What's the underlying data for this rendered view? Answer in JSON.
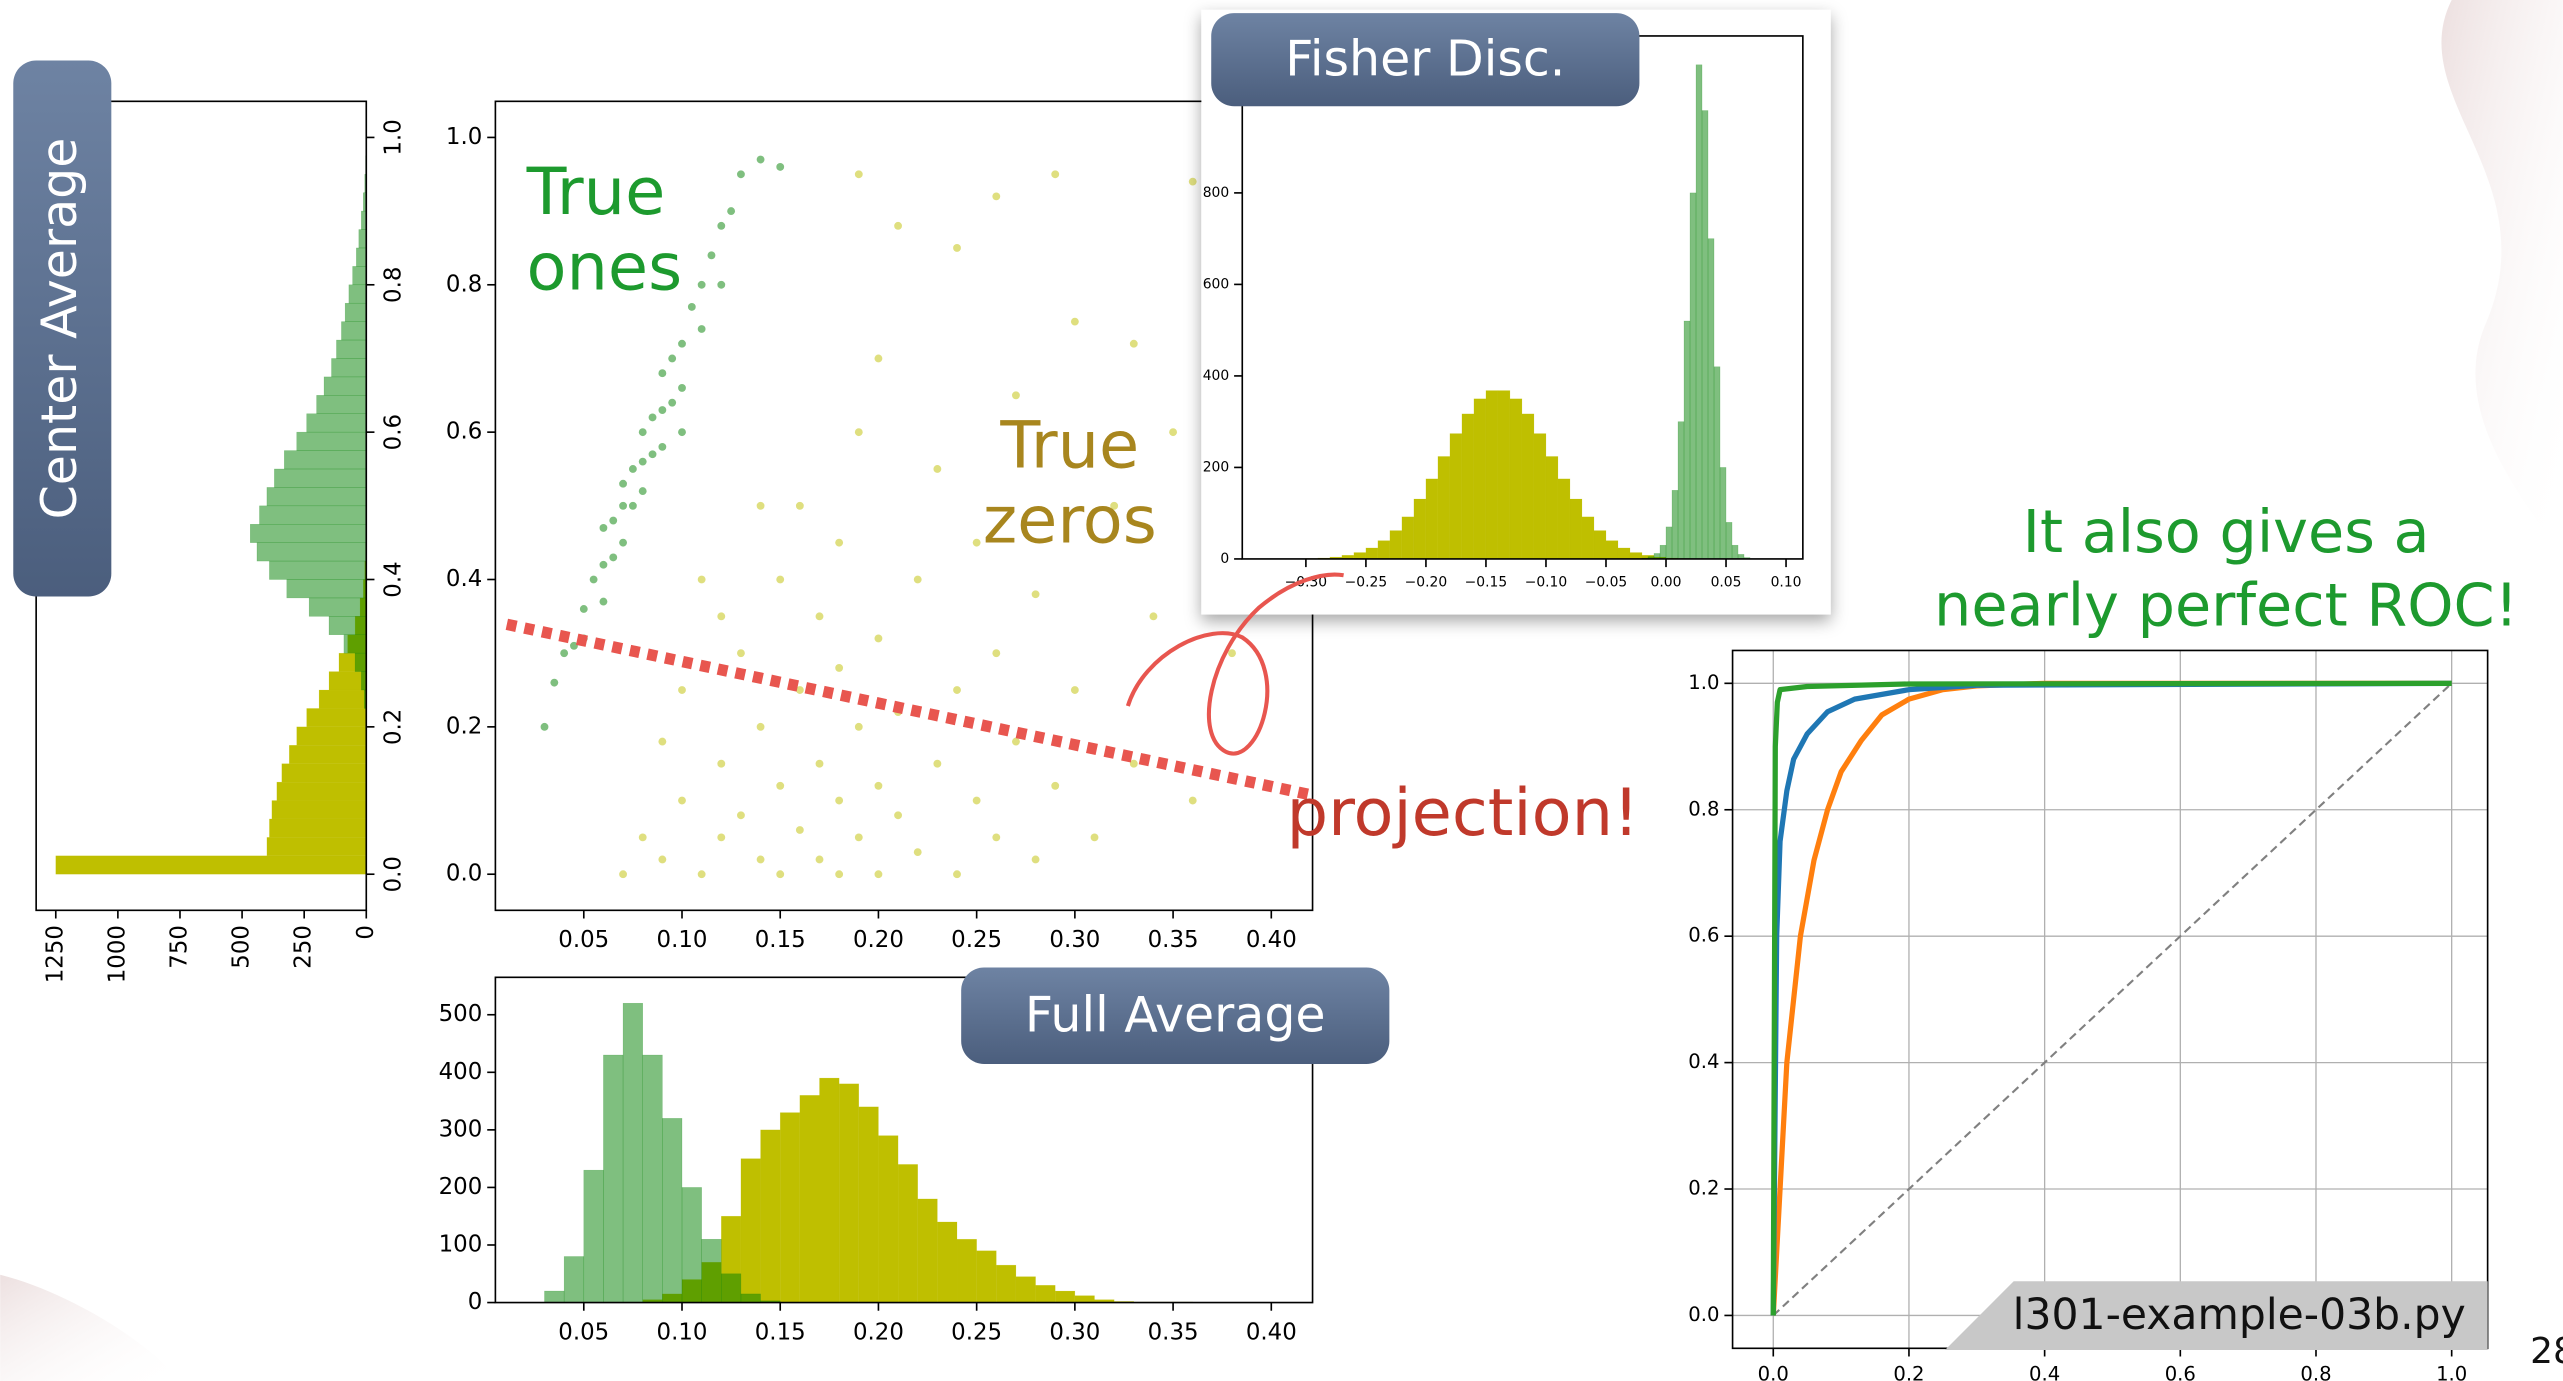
{
  "chart_data": [
    {
      "type": "scatter",
      "xlim": [
        0.005,
        0.421
      ],
      "ylim": [
        -0.049,
        1.049
      ],
      "xticks": [
        0.05,
        {
          "value": 0.1,
          "label": "0.10"
        },
        0.15,
        {
          "value": 0.2,
          "label": "0.20"
        },
        0.25,
        {
          "value": 0.3,
          "label": "0.30"
        },
        0.35,
        {
          "value": 0.4,
          "label": "0.40"
        }
      ],
      "yticks": [
        {
          "value": 0,
          "label": "0.0"
        },
        0.2,
        0.4,
        0.6,
        0.8,
        {
          "value": 1,
          "label": "1.0"
        }
      ],
      "annotation": "projection!",
      "series": [
        {
          "name": "True zeros",
          "color": "#bfbf00",
          "alpha": 0.5,
          "x": [
            0.07,
            0.08,
            0.09,
            0.1,
            0.11,
            0.12,
            0.12,
            0.13,
            0.13,
            0.14,
            0.14,
            0.15,
            0.15,
            0.15,
            0.16,
            0.16,
            0.16,
            0.17,
            0.17,
            0.17,
            0.18,
            0.18,
            0.18,
            0.18,
            0.19,
            0.19,
            0.19,
            0.2,
            0.2,
            0.2,
            0.21,
            0.21,
            0.22,
            0.22,
            0.23,
            0.23,
            0.24,
            0.24,
            0.25,
            0.25,
            0.26,
            0.26,
            0.27,
            0.27,
            0.28,
            0.28,
            0.29,
            0.3,
            0.3,
            0.31,
            0.32,
            0.33,
            0.34,
            0.35,
            0.36,
            0.38,
            0.4,
            0.12,
            0.14,
            0.1,
            0.11,
            0.2,
            0.24,
            0.19,
            0.21,
            0.26,
            0.29,
            0.36,
            0.33,
            0.09
          ],
          "values": [
            0,
            0.05,
            0.02,
            0.1,
            0,
            0.15,
            0.05,
            0.3,
            0.08,
            0.2,
            0.02,
            0.4,
            0.12,
            0,
            0.25,
            0.06,
            0.5,
            0.15,
            0.35,
            0.02,
            0.1,
            0.28,
            0.45,
            0,
            0.2,
            0.05,
            0.6,
            0.12,
            0.32,
            0,
            0.22,
            0.08,
            0.4,
            0.03,
            0.15,
            0.55,
            0.25,
            0,
            0.1,
            0.45,
            0.3,
            0.05,
            0.18,
            0.65,
            0.02,
            0.38,
            0.12,
            0.25,
            0.75,
            0.05,
            0.5,
            0.15,
            0.35,
            0.6,
            0.1,
            0.3,
            0.45,
            0.35,
            0.5,
            0.25,
            0.4,
            0.7,
            0.85,
            0.95,
            0.88,
            0.92,
            0.95,
            0.94,
            0.72,
            0.18
          ]
        },
        {
          "name": "True ones",
          "color": "#008000",
          "alpha": 0.5,
          "x": [
            0.03,
            0.035,
            0.04,
            0.045,
            0.05,
            0.05,
            0.055,
            0.06,
            0.06,
            0.065,
            0.07,
            0.07,
            0.075,
            0.08,
            0.08,
            0.085,
            0.09,
            0.09,
            0.095,
            0.1,
            0.1,
            0.105,
            0.11,
            0.11,
            0.115,
            0.12,
            0.125,
            0.13,
            0.065,
            0.075,
            0.085,
            0.095,
            0.06,
            0.08,
            0.1,
            0.14,
            0.15,
            0.12,
            0.09,
            0.07
          ],
          "values": [
            0.2,
            0.26,
            0.3,
            0.31,
            0.36,
            0.32,
            0.4,
            0.42,
            0.37,
            0.48,
            0.5,
            0.45,
            0.55,
            0.56,
            0.52,
            0.62,
            0.63,
            0.58,
            0.7,
            0.72,
            0.66,
            0.77,
            0.8,
            0.74,
            0.84,
            0.88,
            0.9,
            0.95,
            0.43,
            0.5,
            0.57,
            0.64,
            0.47,
            0.6,
            0.6,
            0.97,
            0.96,
            0.8,
            0.68,
            0.53
          ]
        }
      ]
    },
    {
      "type": "histogram",
      "orientation": "horizontal",
      "title": "Center Average",
      "xlim": [
        1329,
        0
      ],
      "ylim": [
        -0.049,
        1.049
      ],
      "xticks": [
        1250,
        1000,
        750,
        500,
        250,
        0
      ],
      "yticks": [
        {
          "value": 0,
          "label": "0.0"
        },
        0.2,
        0.4,
        0.6,
        0.8,
        {
          "value": 1,
          "label": "1.0"
        }
      ],
      "bins": [
        0,
        0.025,
        0.05,
        0.075,
        0.1,
        0.125,
        0.15,
        0.175,
        0.2,
        0.225,
        0.25,
        0.275,
        0.3,
        0.325,
        0.35,
        0.375,
        0.4,
        0.425,
        0.45,
        0.475,
        0.5,
        0.525,
        0.55,
        0.575,
        0.6,
        0.625,
        0.65,
        0.675,
        0.7,
        0.725,
        0.75,
        0.775,
        0.8,
        0.825,
        0.85,
        0.875,
        0.9,
        0.925,
        0.95,
        0.975,
        1
      ],
      "series": [
        {
          "color": "#bfbf00",
          "alpha": 1,
          "values": [
            1250,
            400,
            390,
            380,
            360,
            340,
            310,
            280,
            240,
            190,
            150,
            110,
            75,
            45,
            25,
            12,
            6,
            3,
            2,
            1,
            0,
            0,
            0,
            0,
            0,
            0,
            0,
            0,
            0,
            0,
            0,
            0,
            0,
            0,
            0,
            0,
            0,
            0,
            0,
            0
          ]
        },
        {
          "color": "#008000",
          "alpha": 0.5,
          "values": [
            0,
            0,
            0,
            0,
            0,
            0,
            0,
            0,
            2,
            8,
            20,
            45,
            90,
            150,
            230,
            320,
            390,
            440,
            467,
            430,
            400,
            370,
            330,
            280,
            240,
            200,
            170,
            140,
            120,
            100,
            85,
            70,
            55,
            40,
            30,
            20,
            12,
            6,
            3,
            1
          ]
        }
      ]
    },
    {
      "type": "histogram",
      "orientation": "vertical",
      "title": "Full Average",
      "xlim": [
        0.005,
        0.421
      ],
      "ylim": [
        0,
        565
      ],
      "xticks": [
        0.05,
        {
          "value": 0.1,
          "label": "0.10"
        },
        0.15,
        {
          "value": 0.2,
          "label": "0.20"
        },
        0.25,
        {
          "value": 0.3,
          "label": "0.30"
        },
        0.35,
        {
          "value": 0.4,
          "label": "0.40"
        }
      ],
      "yticks": [
        0,
        100,
        200,
        300,
        400,
        500
      ],
      "bins": [
        0.02,
        0.03,
        0.04,
        0.05,
        0.06,
        0.07,
        0.08,
        0.09,
        0.1,
        0.11,
        0.12,
        0.13,
        0.14,
        0.15,
        0.16,
        0.17,
        0.18,
        0.19,
        0.2,
        0.21,
        0.22,
        0.23,
        0.24,
        0.25,
        0.26,
        0.27,
        0.28,
        0.29,
        0.3,
        0.31,
        0.32,
        0.33,
        0.34,
        0.35,
        0.36,
        0.37,
        0.38,
        0.39,
        0.4,
        0.41
      ],
      "series": [
        {
          "color": "#bfbf00",
          "alpha": 1,
          "values": [
            0,
            0,
            0,
            0,
            0,
            0,
            5,
            15,
            40,
            70,
            150,
            250,
            300,
            330,
            360,
            390,
            380,
            340,
            290,
            240,
            180,
            140,
            110,
            90,
            65,
            45,
            30,
            20,
            12,
            5,
            2,
            1,
            1,
            1,
            0,
            0,
            0,
            0,
            0
          ]
        },
        {
          "color": "#008000",
          "alpha": 0.5,
          "values": [
            0,
            20,
            80,
            230,
            430,
            520,
            430,
            320,
            200,
            110,
            50,
            15,
            3,
            0,
            0,
            0,
            0,
            0,
            0,
            0,
            0,
            0,
            0,
            0,
            0,
            0,
            0,
            0,
            0,
            0,
            0,
            0,
            0,
            0,
            0,
            0,
            0,
            0,
            0
          ]
        }
      ]
    },
    {
      "type": "histogram",
      "orientation": "vertical",
      "title": "Fisher Disc.",
      "xlim": [
        -0.353,
        0.114
      ],
      "ylim": [
        0,
        1143
      ],
      "xticks": [
        {
          "value": -0.3,
          "label": "−0.30"
        },
        {
          "value": -0.25,
          "label": "−0.25"
        },
        {
          "value": -0.2,
          "label": "−0.20"
        },
        {
          "value": -0.15,
          "label": "−0.15"
        },
        {
          "value": -0.1,
          "label": "−0.10"
        },
        {
          "value": -0.05,
          "label": "−0.05"
        },
        {
          "value": 0,
          "label": "0.00"
        },
        0.05,
        {
          "value": 0.1,
          "label": "0.10"
        }
      ],
      "yticks": [
        0,
        200,
        400,
        600,
        800
      ],
      "series": [
        {
          "color": "#bfbf00",
          "alpha": 1,
          "bins": [
            -0.31,
            -0.3,
            -0.29,
            -0.28,
            -0.27,
            -0.26,
            -0.25,
            -0.24,
            -0.23,
            -0.22,
            -0.21,
            -0.2,
            -0.19,
            -0.18,
            -0.17,
            -0.16,
            -0.15,
            -0.14,
            -0.13,
            -0.12,
            -0.11,
            -0.1,
            -0.09,
            -0.08,
            -0.07,
            -0.06,
            -0.05,
            -0.04,
            -0.03,
            -0.02,
            -0.01,
            0,
            0.01,
            0.02,
            0.03
          ],
          "values": [
            0,
            1,
            2,
            4,
            8,
            14,
            24,
            40,
            62,
            92,
            131,
            175,
            224,
            274,
            317,
            350,
            368,
            368,
            350,
            317,
            274,
            224,
            175,
            131,
            92,
            62,
            40,
            24,
            14,
            8,
            4,
            2,
            1,
            0
          ]
        },
        {
          "color": "#008000",
          "alpha": 0.5,
          "bins": [
            -0.02,
            -0.015,
            -0.01,
            -0.005,
            0,
            0.005,
            0.01,
            0.015,
            0.02,
            0.025,
            0.03,
            0.035,
            0.04,
            0.045,
            0.05,
            0.055,
            0.06,
            0.065,
            0.07
          ],
          "values": [
            2,
            5,
            12,
            30,
            70,
            150,
            300,
            520,
            800,
            1080,
            980,
            700,
            420,
            200,
            80,
            30,
            10,
            3
          ]
        }
      ]
    },
    {
      "type": "line",
      "title_lines": [
        "It also gives a",
        "nearly perfect ROC!"
      ],
      "grid": true,
      "xlim": [
        -0.06,
        1.053
      ],
      "ylim": [
        -0.052,
        1.052
      ],
      "xticks": [
        {
          "value": 0,
          "label": "0.0"
        },
        0.2,
        0.4,
        0.6,
        0.8,
        {
          "value": 1,
          "label": "1.0"
        }
      ],
      "yticks": [
        {
          "value": 0,
          "label": "0.0"
        },
        0.2,
        0.4,
        0.6,
        0.8,
        {
          "value": 1,
          "label": "1.0"
        }
      ],
      "series": [
        {
          "color": "#808080",
          "dashed": true,
          "x": [
            0,
            1
          ],
          "values": [
            0,
            1
          ]
        },
        {
          "color": "#ff7f0e",
          "x": [
            0,
            0.01,
            0.02,
            0.04,
            0.06,
            0.08,
            0.1,
            0.13,
            0.16,
            0.2,
            0.25,
            0.3,
            0.4,
            1
          ],
          "values": [
            0,
            0.2,
            0.4,
            0.6,
            0.72,
            0.8,
            0.86,
            0.91,
            0.95,
            0.975,
            0.99,
            0.996,
            1,
            1
          ]
        },
        {
          "color": "#1f77b4",
          "x": [
            0,
            0.005,
            0.01,
            0.02,
            0.03,
            0.05,
            0.08,
            0.12,
            0.2,
            0.3,
            1
          ],
          "values": [
            0,
            0.6,
            0.75,
            0.83,
            0.88,
            0.92,
            0.955,
            0.975,
            0.99,
            0.997,
            1
          ]
        },
        {
          "color": "#2ca02c",
          "x": [
            0,
            0.003,
            0.006,
            0.01,
            0.05,
            0.2,
            1
          ],
          "values": [
            0,
            0.9,
            0.97,
            0.99,
            0.995,
            0.999,
            1
          ]
        }
      ]
    }
  ],
  "slide": {
    "footer": "l301-example-03b.py",
    "page": 28
  }
}
